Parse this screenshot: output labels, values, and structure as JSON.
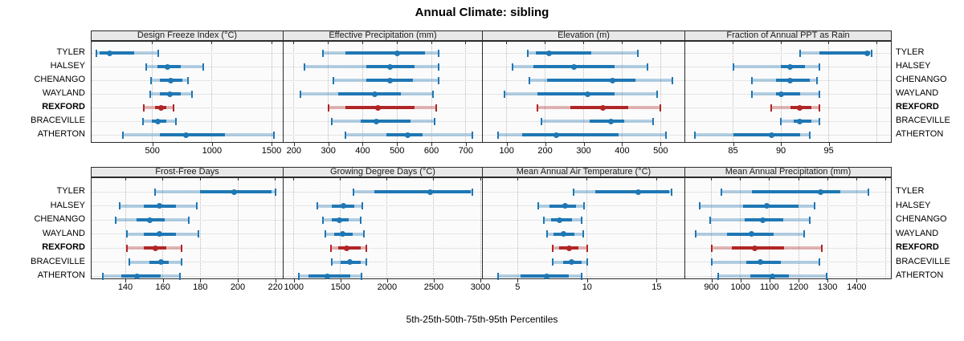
{
  "title": "Annual Climate: sibling",
  "footer": {
    "axis_label": "5th-25th-50th-75th-95th Percentiles"
  },
  "sites": [
    "TYLER",
    "HALSEY",
    "CHENANGO",
    "WAYLAND",
    "REXFORD",
    "BRACEVILLE",
    "ATHERTON"
  ],
  "bold_site": "REXFORD",
  "colors": {
    "series": "#1f77b4",
    "highlight": "#b02626",
    "strip_bg": "#e8e8e8",
    "panel_bg": "#fbfbfb",
    "grid": "#bdbdbd",
    "border": "#2b2b2b"
  },
  "chart_data": {
    "type": "percentile-dotplot",
    "percentiles": [
      "5th",
      "25th",
      "50th",
      "75th",
      "95th"
    ],
    "legend_note": "REXFORD highlighted in red; all other sites blue",
    "panels": [
      {
        "title": "Design Freeze Index (°C)",
        "domain": [
          -10,
          1594
        ],
        "ticks": [
          500,
          1000,
          1500
        ],
        "tick_labels": [
          "500",
          "1000",
          "1500"
        ],
        "grid_extra": [],
        "values": [
          [
            30,
            60,
            145,
            350,
            550
          ],
          [
            445,
            540,
            625,
            740,
            925
          ],
          [
            490,
            560,
            655,
            755,
            800
          ],
          [
            480,
            560,
            650,
            735,
            835
          ],
          [
            425,
            520,
            575,
            620,
            680
          ],
          [
            420,
            495,
            545,
            615,
            695
          ],
          [
            250,
            560,
            780,
            1110,
            1520
          ]
        ]
      },
      {
        "title": "Effective Precipitation (mm)",
        "domain": [
          170,
          747
        ],
        "ticks": [
          200,
          300,
          400,
          500,
          600,
          700
        ],
        "tick_labels": [
          "200",
          "300",
          "400",
          "500",
          "600",
          "700"
        ],
        "grid_extra": [],
        "values": [
          [
            285,
            350,
            500,
            580,
            620
          ],
          [
            230,
            410,
            480,
            550,
            620
          ],
          [
            315,
            410,
            480,
            545,
            620
          ],
          [
            220,
            330,
            435,
            510,
            605
          ],
          [
            300,
            350,
            445,
            550,
            615
          ],
          [
            310,
            395,
            440,
            540,
            610
          ],
          [
            350,
            470,
            530,
            575,
            720
          ]
        ]
      },
      {
        "title": "Elevation (m)",
        "domain": [
          38,
          562
        ],
        "ticks": [
          100,
          200,
          300,
          400,
          500
        ],
        "tick_labels": [
          "100",
          "200",
          "300",
          "400",
          "500"
        ],
        "grid_extra": [],
        "values": [
          [
            155,
            175,
            210,
            320,
            440
          ],
          [
            115,
            170,
            275,
            380,
            465
          ],
          [
            160,
            205,
            375,
            435,
            530
          ],
          [
            95,
            180,
            310,
            380,
            490
          ],
          [
            180,
            265,
            350,
            415,
            500
          ],
          [
            190,
            315,
            370,
            405,
            480
          ],
          [
            77,
            140,
            230,
            390,
            515
          ]
        ]
      },
      {
        "title": "Fraction of Annual PPT as Rain",
        "domain": [
          80,
          101.5
        ],
        "ticks": [
          85,
          90,
          95
        ],
        "tick_labels": [
          "85",
          "90",
          "95"
        ],
        "grid_extra": [
          100
        ],
        "values": [
          [
            92,
            94,
            99,
            99.3,
            99.5
          ],
          [
            85,
            90,
            91,
            92.5,
            94
          ],
          [
            87,
            89.5,
            91,
            93,
            93.8
          ],
          [
            87,
            89.5,
            90,
            92,
            94
          ],
          [
            89,
            91,
            92,
            93.2,
            94
          ],
          [
            90,
            91.3,
            92,
            93.2,
            94
          ],
          [
            81,
            85,
            89,
            92,
            93
          ]
        ]
      },
      {
        "title": "Frost-Free Days",
        "domain": [
          122,
          224
        ],
        "ticks": [
          140,
          160,
          180,
          200,
          220
        ],
        "tick_labels": [
          "140",
          "160",
          "180",
          "200",
          "220"
        ],
        "grid_extra": [],
        "values": [
          [
            156,
            180,
            198,
            218,
            220
          ],
          [
            137,
            150,
            158,
            167,
            178
          ],
          [
            135,
            146,
            153,
            161,
            174
          ],
          [
            141,
            150,
            158,
            167,
            179
          ],
          [
            141,
            150,
            156,
            162,
            170
          ],
          [
            142,
            153,
            159,
            163,
            170
          ],
          [
            128,
            138,
            146,
            159,
            169
          ]
        ]
      },
      {
        "title": "Growing Degree Days (°C)",
        "domain": [
          890,
          3017
        ],
        "ticks": [
          1000,
          1500,
          2000,
          2500,
          3000
        ],
        "tick_labels": [
          "1000",
          "1500",
          "2000",
          "2500",
          "3000"
        ],
        "grid_extra": [],
        "values": [
          [
            1640,
            1860,
            2465,
            2895,
            2910
          ],
          [
            1255,
            1405,
            1530,
            1645,
            1735
          ],
          [
            1315,
            1405,
            1490,
            1590,
            1715
          ],
          [
            1340,
            1430,
            1520,
            1630,
            1755
          ],
          [
            1395,
            1475,
            1565,
            1715,
            1780
          ],
          [
            1410,
            1505,
            1600,
            1715,
            1775
          ],
          [
            1050,
            1160,
            1360,
            1605,
            1725
          ]
        ]
      },
      {
        "title": "Mean Annual Air Temperature (°C)",
        "domain": [
          2.5,
          17
        ],
        "ticks": [
          5,
          10,
          15
        ],
        "tick_labels": [
          "5",
          "10",
          "15"
        ],
        "grid_extra": [],
        "values": [
          [
            9.0,
            10.6,
            13.7,
            15.9,
            16.1
          ],
          [
            6.5,
            7.3,
            8.4,
            9.2,
            9.8
          ],
          [
            6.9,
            7.4,
            8.0,
            8.9,
            9.6
          ],
          [
            7.1,
            7.6,
            8.3,
            9.1,
            9.7
          ],
          [
            7.5,
            8.0,
            8.7,
            9.4,
            10.0
          ],
          [
            7.5,
            8.3,
            8.9,
            9.6,
            10.0
          ],
          [
            3.6,
            5.2,
            7.1,
            8.7,
            9.6
          ]
        ]
      },
      {
        "title": "Mean Annual Precipitation (mm)",
        "domain": [
          810,
          1518
        ],
        "ticks": [
          900,
          1000,
          1100,
          1200,
          1300,
          1400
        ],
        "tick_labels": [
          "900",
          "1000",
          "1100",
          "1200",
          "1300",
          "1400"
        ],
        "grid_extra": [
          1500
        ],
        "values": [
          [
            935,
            1040,
            1275,
            1345,
            1440
          ],
          [
            860,
            1010,
            1090,
            1200,
            1255
          ],
          [
            895,
            1015,
            1077,
            1148,
            1240
          ],
          [
            845,
            955,
            1038,
            1115,
            1220
          ],
          [
            900,
            970,
            1050,
            1150,
            1280
          ],
          [
            900,
            1020,
            1068,
            1138,
            1273
          ],
          [
            923,
            1033,
            1110,
            1166,
            1297
          ]
        ]
      }
    ]
  }
}
